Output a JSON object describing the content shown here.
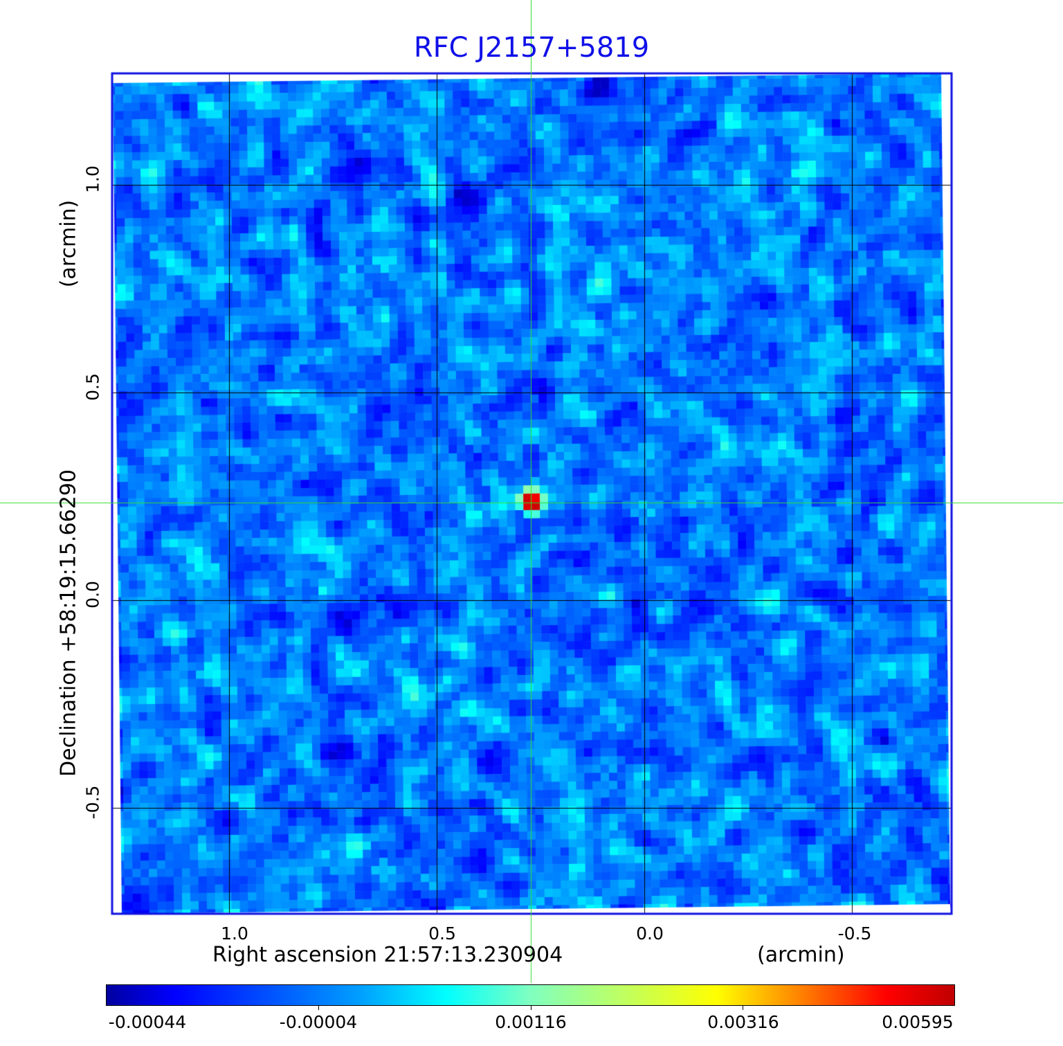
{
  "chart_data": {
    "type": "heatmap",
    "title": "RFC J2157+5819",
    "xlabel": "Right ascension  21:57:13.230904",
    "xunit": "(arcmin)",
    "ylabel": "Declination  +58:19:15.66290",
    "yunit": "(arcmin)",
    "x_ticks": [
      "1.0",
      "0.5",
      "0.0",
      "-0.5"
    ],
    "x_tick_values": [
      1.0,
      0.5,
      0.0,
      -0.5
    ],
    "y_ticks": [
      "1.0",
      "0.5",
      "0.0",
      "-0.5"
    ],
    "y_tick_values": [
      1.0,
      0.5,
      0.0,
      -0.5
    ],
    "grid": true,
    "crosshair": {
      "x": 0.273,
      "y": 0.235
    },
    "source_peak": {
      "x": 0.273,
      "y": 0.235,
      "value": 0.00595
    },
    "colorbar": {
      "colormap": "jet",
      "range": [
        -0.00044,
        0.00595
      ],
      "ticks": [
        "-0.00044",
        "-0.00004",
        "0.00116",
        "0.00316",
        "0.00595"
      ]
    },
    "colors": {
      "title": "#1010e8",
      "frame": "#1010e0",
      "crosshair": "#33dd33",
      "grid": "#000000"
    }
  }
}
